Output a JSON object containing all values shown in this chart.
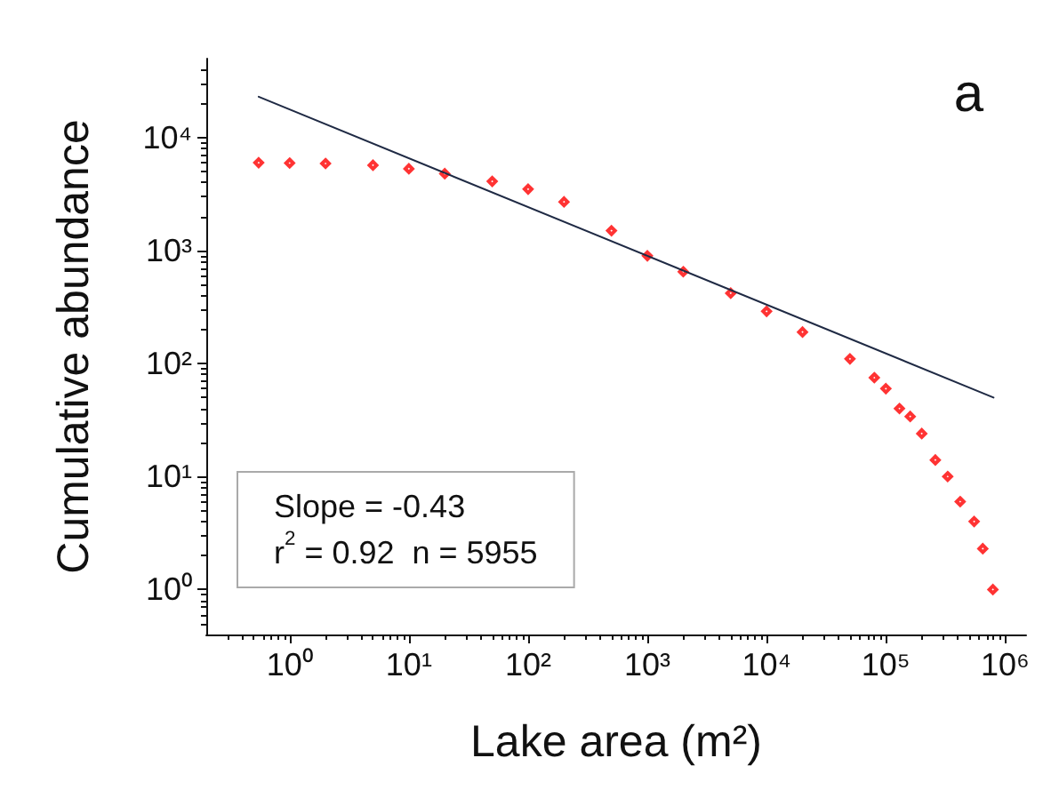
{
  "chart_data": {
    "type": "scatter",
    "xlabel": "Lake area (m²)",
    "ylabel": "Cumulative abundance",
    "log": "xy",
    "grid": false,
    "marker": "diamond",
    "xlim": [
      0.2,
      1500000
    ],
    "ylim": [
      0.4,
      50000
    ],
    "xticks": [
      {
        "value": 1,
        "label": "10⁰"
      },
      {
        "value": 10,
        "label": "10¹"
      },
      {
        "value": 100,
        "label": "10²"
      },
      {
        "value": 1000,
        "label": "10³"
      },
      {
        "value": 10000,
        "label": "10⁴"
      },
      {
        "value": 100000,
        "label": "10⁵"
      },
      {
        "value": 1000000,
        "label": "10⁶"
      }
    ],
    "yticks": [
      {
        "value": 1,
        "label": "10⁰"
      },
      {
        "value": 10,
        "label": "10¹"
      },
      {
        "value": 100,
        "label": "10²"
      },
      {
        "value": 1000,
        "label": "10³"
      },
      {
        "value": 10000,
        "label": "10⁴"
      }
    ],
    "series": [
      {
        "color": "#ff0000",
        "x": [
          0.55,
          1,
          2,
          5,
          10,
          20,
          50,
          100,
          200,
          500,
          1000,
          2000,
          5000,
          10000,
          20000,
          50000,
          80000,
          100000,
          130000,
          160000,
          200000,
          260000,
          330000,
          420000,
          550000,
          650000,
          790000
        ],
        "values": [
          6000,
          5950,
          5900,
          5700,
          5300,
          4800,
          4100,
          3500,
          2700,
          1500,
          900,
          650,
          420,
          290,
          190,
          110,
          75,
          60,
          40,
          34,
          24,
          14,
          10,
          6,
          4,
          2.3,
          1
        ]
      },
      {
        "type": "line",
        "color": "#1f2a44",
        "line_style": "solid",
        "marker": "none",
        "x": [
          0.55,
          800000
        ],
        "values": [
          23000,
          50
        ]
      }
    ],
    "annotations": [
      "Slope = -0.43",
      "r$^{2}$ = 0.92  n = 5955",
      "a"
    ]
  }
}
